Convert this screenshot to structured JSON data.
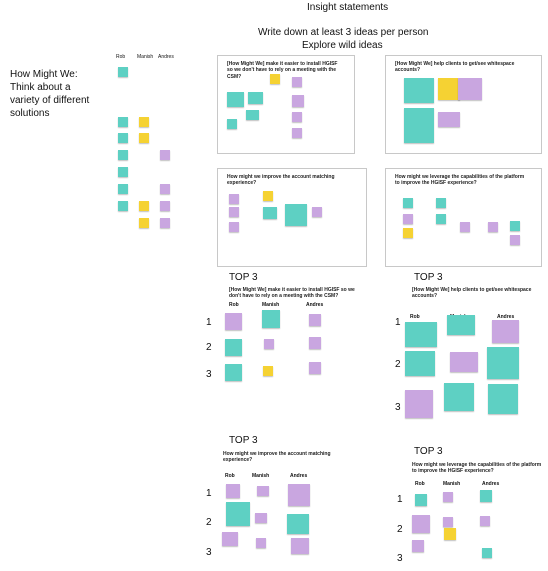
{
  "header": {
    "title": "Insight statements",
    "instructions": [
      "Write down at least 3 ideas per person",
      "Explore wild ideas"
    ]
  },
  "sidebar": {
    "lines": [
      "How Might We:",
      "Think about a",
      "variety of different",
      "solutions"
    ],
    "columns": [
      "Rob",
      "Manish",
      "Andres"
    ]
  },
  "frames": [
    {
      "question": "[How Might We] make it easier to install HGISF so we don't have to rely on a meeting with the CSM?"
    },
    {
      "question": "[How Might We] help clients to get/see whitespace accounts?"
    },
    {
      "question": "How might we improve the account matching experience?"
    },
    {
      "question": "How might we leverage the capabilities of the platform to improve the HGISF experience?"
    }
  ],
  "top3": [
    {
      "title": "TOP 3",
      "question": "[How Might We] make it easier to install HGISF so we don't have to rely on a meeting with the CSM?",
      "columns": [
        "Rob",
        "Manish",
        "Andres"
      ],
      "rows": [
        "1",
        "2",
        "3"
      ]
    },
    {
      "title": "TOP 3",
      "question": "[How Might We] help clients to get/see whitespace accounts?",
      "columns": [
        "Rob",
        "Manish",
        "Andres"
      ],
      "rows": [
        "1",
        "2",
        "3"
      ]
    },
    {
      "title": "TOP 3",
      "question": "How might we improve the account matching experience?",
      "columns": [
        "Rob",
        "Manish",
        "Andres"
      ],
      "rows": [
        "1",
        "2",
        "3"
      ]
    },
    {
      "title": "TOP 3",
      "question": "How might we leverage the capabilities of the platform to improve the HGISF experience?",
      "columns": [
        "Rob",
        "Manish",
        "Andres"
      ],
      "rows": [
        "1",
        "2",
        "3"
      ]
    }
  ]
}
